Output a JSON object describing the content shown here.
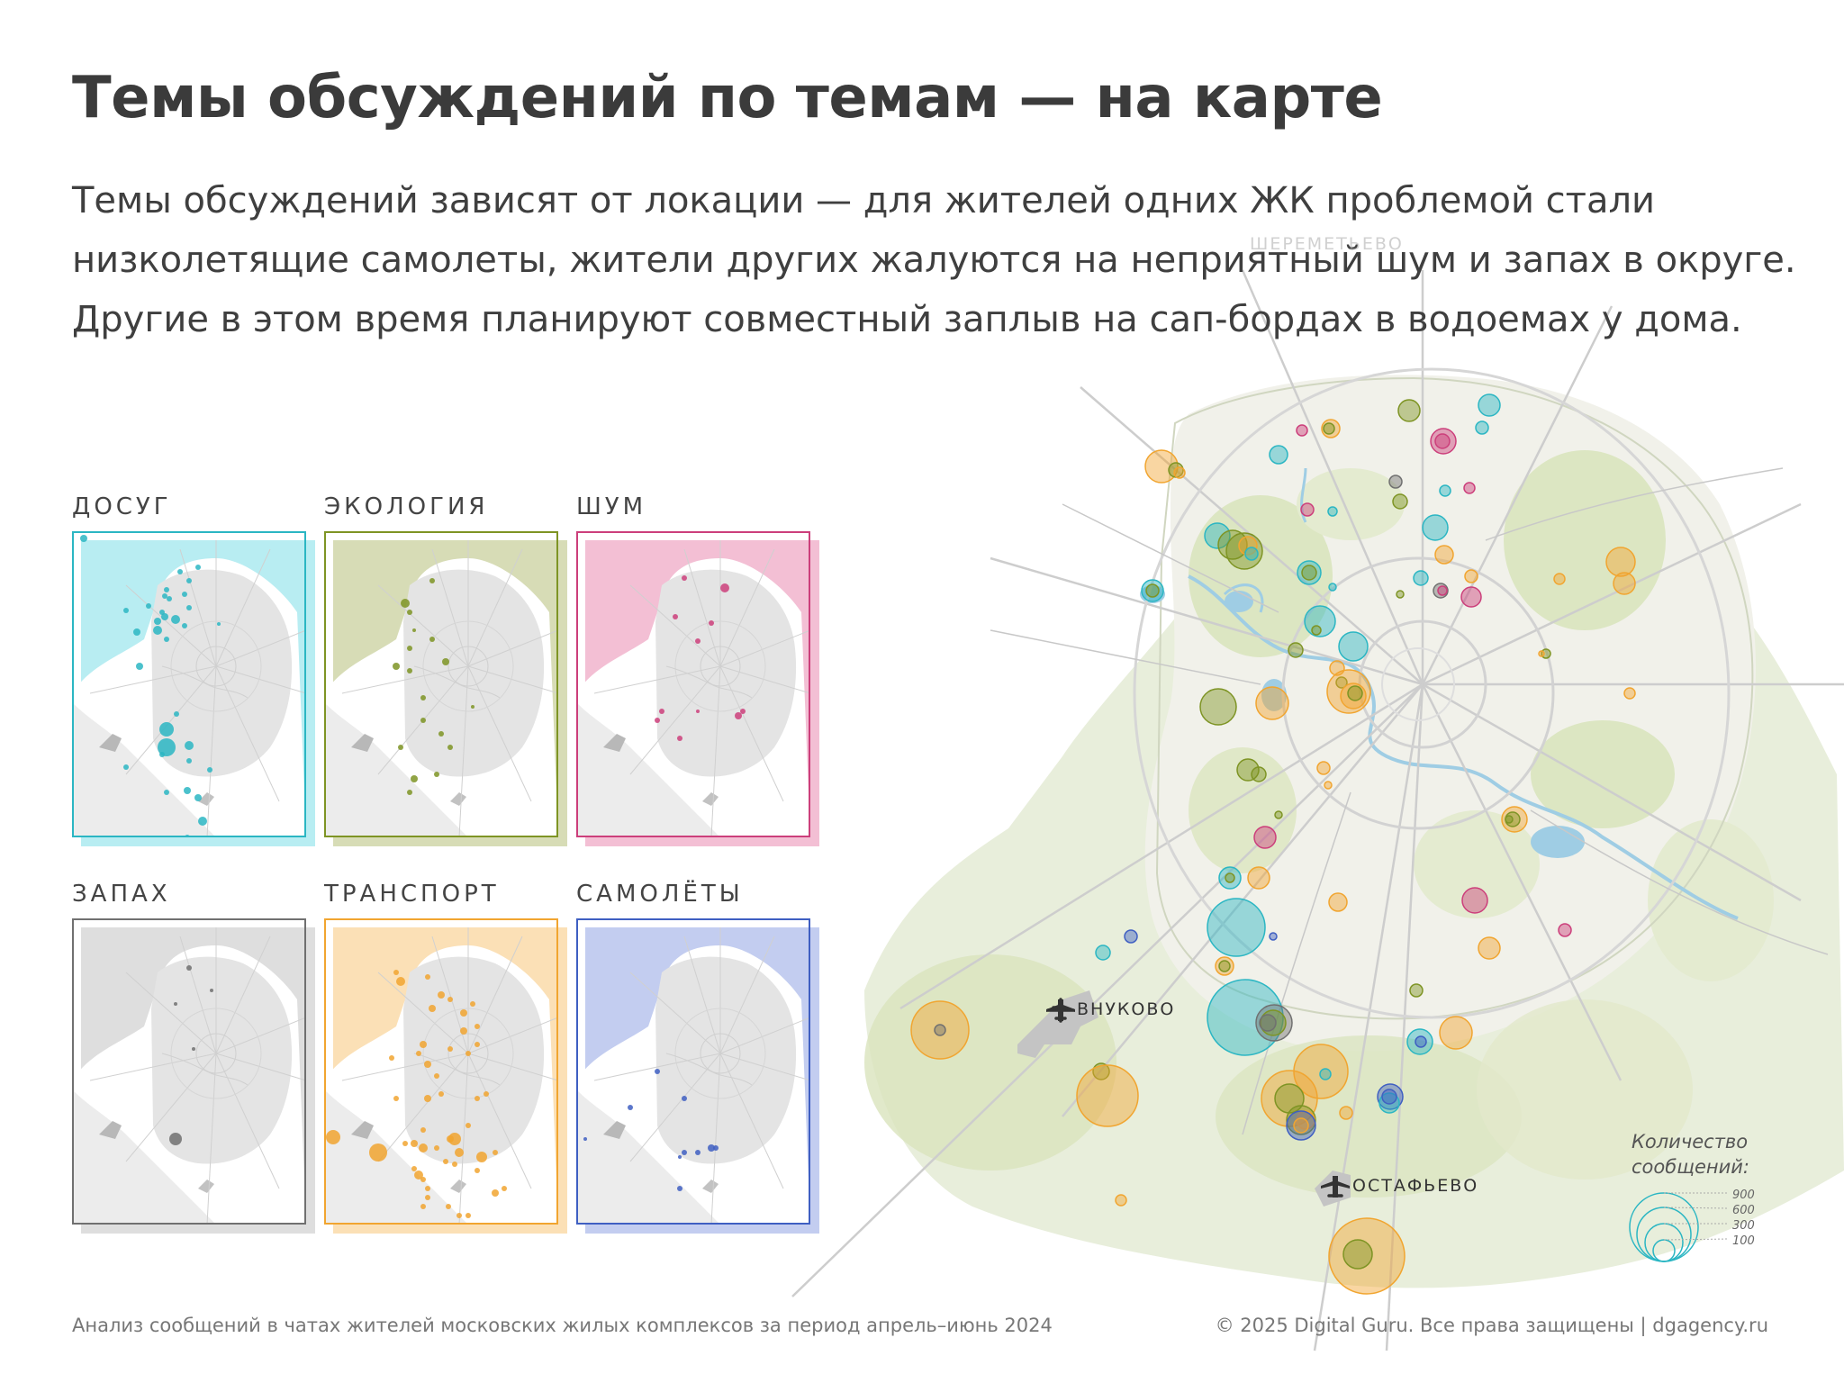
{
  "title": "Темы обсуждений по темам — на карте",
  "subtitle": [
    "Темы обсуждений зависят от локации — для жителей одних ЖК проблемой стали",
    "низколетящие самолеты, жители других жалуются на неприятный шум и запах в округе.",
    "Другие в этом время планируют совместный заплыв на сап-бордах в водоемах у дома."
  ],
  "colors": {
    "leisure": "#2bb6c3",
    "ecology": "#7e9424",
    "noise": "#cc3f7b",
    "smell": "#707070",
    "transport": "#f1a530",
    "planes": "#3f5fc2",
    "green": "#cfdcae",
    "road": "#c6c6c6"
  },
  "panels": [
    {
      "key": "leisure",
      "label": "ДОСУГ",
      "color": "#2bb6c3",
      "shadow": "#b8edf2"
    },
    {
      "key": "ecology",
      "label": "ЭКОЛОГИЯ",
      "color": "#7e9424",
      "shadow": "#d7dcb6"
    },
    {
      "key": "noise",
      "label": "ШУМ",
      "color": "#cc3f7b",
      "shadow": "#f3bfd4"
    },
    {
      "key": "smell",
      "label": "ЗАПАХ",
      "color": "#707070",
      "shadow": "#dedede"
    },
    {
      "key": "transport",
      "label": "ТРАНСПОРТ",
      "color": "#f1a530",
      "shadow": "#fbe0b6"
    },
    {
      "key": "planes",
      "label": "САМОЛЁТЫ",
      "color": "#3f5fc2",
      "shadow": "#c3cdf0"
    }
  ],
  "airports": {
    "vnukovo": "ВНУКОВО",
    "ostafyevo": "ОСТАФЬЕВО",
    "sheremetyevo": "ШЕРЕМЕТЬЕВО"
  },
  "legend": {
    "title_line1": "Количество",
    "title_line2": "сообщений:",
    "values": [
      900,
      600,
      300,
      100
    ]
  },
  "footer": {
    "source": "Анализ сообщений в чатах жителей московских жилых комплексов за период апрель–июнь 2024",
    "copyright": "© 2025 Digital Guru. Все права защищены | dgagency.ru"
  }
}
